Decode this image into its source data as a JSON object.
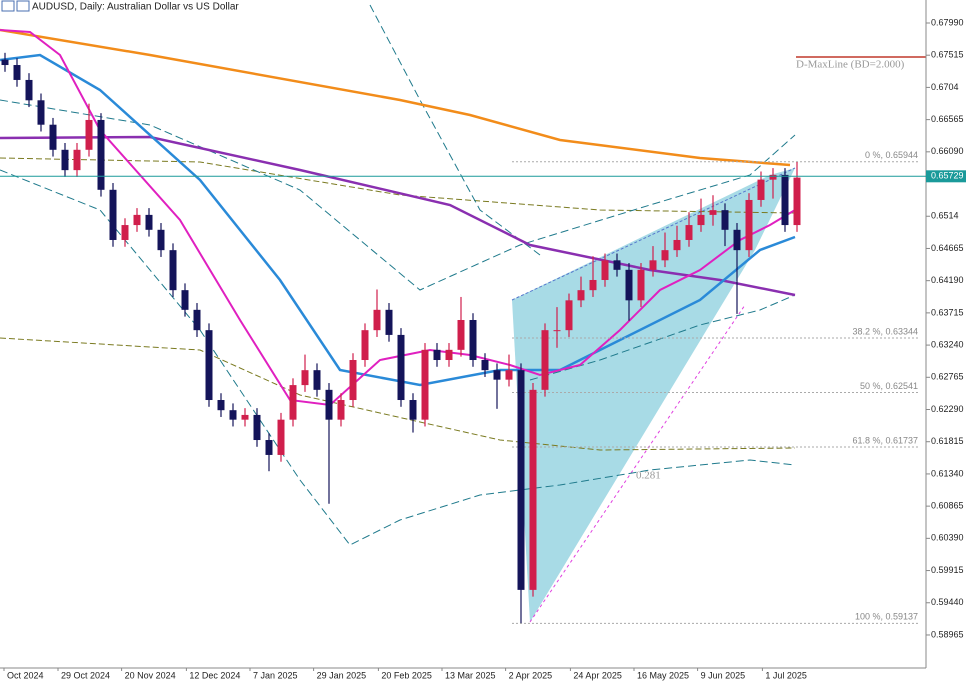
{
  "chart_data": {
    "type": "candlestick",
    "title": "AUDUSD, Daily:  Australian Dollar vs US Dollar",
    "up_color": "#d01f4c",
    "down_color": "#14145a",
    "open": [
      0.6745,
      0.6737,
      0.6715,
      0.6685,
      0.6649,
      0.6612,
      0.6582,
      0.6612,
      0.6656,
      0.6553,
      0.6479,
      0.6501,
      0.6516,
      0.6494,
      0.6464,
      0.6405,
      0.6376,
      0.6346,
      0.6243,
      0.6228,
      0.6214,
      0.6221,
      0.6184,
      0.6162,
      0.6214,
      0.6265,
      0.6287,
      0.6258,
      0.6214,
      0.6243,
      0.6302,
      0.6346,
      0.6376,
      0.6339,
      0.6243,
      0.6214,
      0.6317,
      0.6302,
      0.6317,
      0.6361,
      0.6302,
      0.6287,
      0.6273,
      0.6287,
      0.5963,
      0.6258,
      0.6346,
      0.6346,
      0.639,
      0.6405,
      0.642,
      0.6449,
      0.6435,
      0.639,
      0.6435,
      0.6449,
      0.6464,
      0.6479,
      0.6501,
      0.6516,
      0.6523,
      0.6494,
      0.6464,
      0.6538,
      0.6568,
      0.6575,
      0.6501
    ],
    "high": [
      0.6755,
      0.6747,
      0.6725,
      0.6695,
      0.6659,
      0.6622,
      0.6622,
      0.668,
      0.6666,
      0.6563,
      0.6511,
      0.6526,
      0.6526,
      0.6504,
      0.6474,
      0.6415,
      0.6386,
      0.6356,
      0.6253,
      0.6238,
      0.6231,
      0.6231,
      0.6194,
      0.6224,
      0.6275,
      0.631,
      0.6297,
      0.6268,
      0.6253,
      0.6312,
      0.6356,
      0.6406,
      0.6386,
      0.6349,
      0.6253,
      0.6327,
      0.6327,
      0.6327,
      0.6395,
      0.6371,
      0.6312,
      0.6297,
      0.631,
      0.6297,
      0.6268,
      0.6356,
      0.638,
      0.64,
      0.6425,
      0.6455,
      0.6459,
      0.6459,
      0.6445,
      0.6445,
      0.647,
      0.649,
      0.65,
      0.652,
      0.654,
      0.6545,
      0.6533,
      0.6504,
      0.6548,
      0.658,
      0.6585,
      0.6585,
      0.6594
    ],
    "low": [
      0.6727,
      0.6705,
      0.6675,
      0.6639,
      0.6602,
      0.6572,
      0.6572,
      0.6602,
      0.6543,
      0.6469,
      0.6469,
      0.6491,
      0.6484,
      0.6454,
      0.6395,
      0.6366,
      0.6336,
      0.6233,
      0.6218,
      0.6204,
      0.6204,
      0.6174,
      0.6138,
      0.6152,
      0.6204,
      0.6255,
      0.6248,
      0.609,
      0.6204,
      0.6233,
      0.6292,
      0.6336,
      0.6329,
      0.6233,
      0.6195,
      0.6204,
      0.6292,
      0.6292,
      0.6307,
      0.6292,
      0.6277,
      0.623,
      0.6263,
      0.5914,
      0.5953,
      0.6248,
      0.632,
      0.6336,
      0.638,
      0.6395,
      0.641,
      0.6425,
      0.636,
      0.638,
      0.6425,
      0.6439,
      0.6454,
      0.6469,
      0.6491,
      0.65,
      0.647,
      0.637,
      0.6454,
      0.6528,
      0.654,
      0.6491,
      0.6491
    ],
    "close": [
      0.6737,
      0.6715,
      0.6685,
      0.6649,
      0.6612,
      0.6582,
      0.6612,
      0.6656,
      0.6553,
      0.6479,
      0.6501,
      0.6516,
      0.6494,
      0.6464,
      0.6405,
      0.6376,
      0.6346,
      0.6243,
      0.6228,
      0.6214,
      0.6221,
      0.6184,
      0.6162,
      0.6214,
      0.6265,
      0.6287,
      0.6258,
      0.6214,
      0.6243,
      0.6302,
      0.6346,
      0.6376,
      0.6339,
      0.6243,
      0.6214,
      0.6317,
      0.6302,
      0.6317,
      0.6361,
      0.6302,
      0.6287,
      0.6273,
      0.6287,
      0.5963,
      0.6258,
      0.6346,
      0.6346,
      0.639,
      0.6405,
      0.642,
      0.6449,
      0.6435,
      0.639,
      0.6435,
      0.6449,
      0.6464,
      0.6479,
      0.6501,
      0.6516,
      0.6523,
      0.6494,
      0.6464,
      0.6538,
      0.6568,
      0.6575,
      0.6501,
      0.6571
    ],
    "ylim": [
      0.58478,
      0.68329
    ],
    "yticks": [
      {
        "value": 0.6799,
        "label": "0.67990"
      },
      0.67515,
      0.6704,
      0.66565,
      {
        "value": 0.6609,
        "label": "0.66090"
      },
      0.6514,
      0.64665,
      {
        "value": 0.6419,
        "label": "0.64190"
      },
      0.63715,
      {
        "value": 0.6324,
        "label": "0.63240"
      },
      0.62765,
      {
        "value": 0.6229,
        "label": "0.62290"
      },
      0.61815,
      {
        "value": 0.6134,
        "label": "0.61340"
      },
      0.60865,
      {
        "value": 0.6039,
        "label": "0.60390"
      },
      0.59915,
      {
        "value": 0.5944,
        "label": "0.59440"
      },
      0.58965
    ],
    "current_price": 0.65729,
    "xticks": [
      {
        "value": 0,
        "label": "Oct 2024"
      },
      {
        "value": 4.5,
        "label": "29 Oct 2024"
      },
      {
        "value": 9.8,
        "label": "20 Nov 2024"
      },
      {
        "value": 15.2,
        "label": "12 Dec 2024"
      },
      {
        "value": 20.5,
        "label": "7 Jan 2025"
      },
      {
        "value": 25.8,
        "label": "29 Jan 2025"
      },
      {
        "value": 31.2,
        "label": "20 Feb 2025"
      },
      {
        "value": 36.5,
        "label": "13 Mar 2025"
      },
      {
        "value": 41.8,
        "label": "2 Apr 2025"
      },
      {
        "value": 47.2,
        "label": "24 Apr 2025"
      },
      {
        "value": 52.5,
        "label": "16 May 2025"
      },
      {
        "value": 57.8,
        "label": "9 Jun 2025"
      },
      {
        "value": 63.2,
        "label": "1 Jul 2025"
      }
    ],
    "fib_levels": [
      {
        "label": "0 %, 0.65944",
        "value": 0.65944
      },
      {
        "label": "38.2 %, 0.63344",
        "value": 0.63344
      },
      {
        "label": "50 %, 0.62541",
        "value": 0.62541
      },
      {
        "label": "61.8 %, 0.61737",
        "value": 0.61737
      },
      {
        "label": "100 %, 0.59137",
        "value": 0.59137
      }
    ],
    "maxline": {
      "label": "D-MaxLine (BD=2.000)",
      "value": 0.67489
    },
    "annotation": "0.281"
  }
}
